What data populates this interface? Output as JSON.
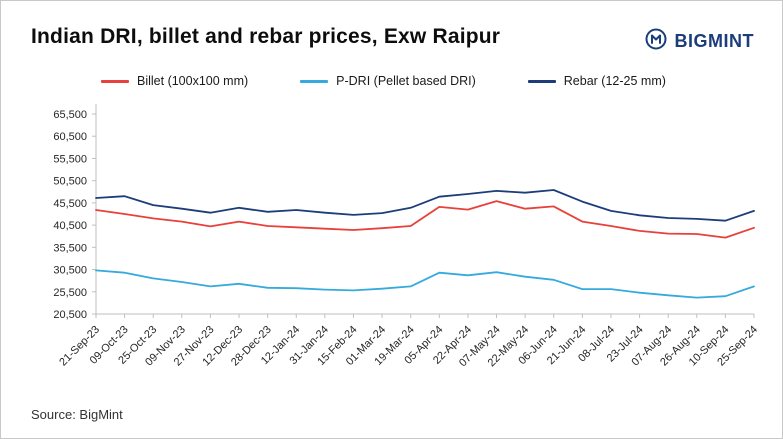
{
  "header": {
    "title": "Indian DRI, billet and rebar prices, Exw Raipur",
    "brand": "BIGMINT"
  },
  "footer": {
    "source": "Source: BigMint"
  },
  "chart_data": {
    "type": "line",
    "title": "Indian DRI, billet and rebar prices, Exw Raipur",
    "xlabel": "",
    "ylabel": "",
    "ylim": [
      20500,
      65500
    ],
    "ytick_step": 5000,
    "grid": false,
    "legend_position": "top",
    "source": "Source: BigMint",
    "categories": [
      "21-Sep-23",
      "09-Oct-23",
      "25-Oct-23",
      "09-Nov-23",
      "27-Nov-23",
      "12-Dec-23",
      "28-Dec-23",
      "12-Jan-24",
      "31-Jan-24",
      "15-Feb-24",
      "01-Mar-24",
      "19-Mar-24",
      "05-Apr-24",
      "22-Apr-24",
      "07-May-24",
      "22-May-24",
      "06-Jun-24",
      "21-Jun-24",
      "08-Jul-24",
      "23-Jul-24",
      "07-Aug-24",
      "26-Aug-24",
      "10-Sep-24",
      "25-Sep-24"
    ],
    "series": [
      {
        "name": "Billet (100x100 mm)",
        "color": "#e8403a",
        "values": [
          43900,
          43000,
          42000,
          41300,
          40200,
          41300,
          40300,
          40000,
          39700,
          39400,
          39800,
          40300,
          44600,
          44000,
          45900,
          44200,
          44700,
          41300,
          40300,
          39200,
          38600,
          38500,
          37700,
          39900
        ]
      },
      {
        "name": "P-DRI (Pellet based DRI)",
        "color": "#35aadc",
        "values": [
          30300,
          29800,
          28500,
          27700,
          26700,
          27300,
          26400,
          26300,
          26000,
          25800,
          26200,
          26700,
          29800,
          29200,
          29900,
          28900,
          28200,
          26100,
          26100,
          25300,
          24700,
          24200,
          24500,
          26700
        ]
      },
      {
        "name": "Rebar (12-25 mm)",
        "color": "#1c3d7a",
        "values": [
          46600,
          47000,
          45000,
          44200,
          43300,
          44400,
          43500,
          43900,
          43300,
          42800,
          43200,
          44400,
          46900,
          47500,
          48200,
          47800,
          48400,
          45800,
          43700,
          42700,
          42100,
          41900,
          41500,
          43700
        ]
      }
    ]
  }
}
